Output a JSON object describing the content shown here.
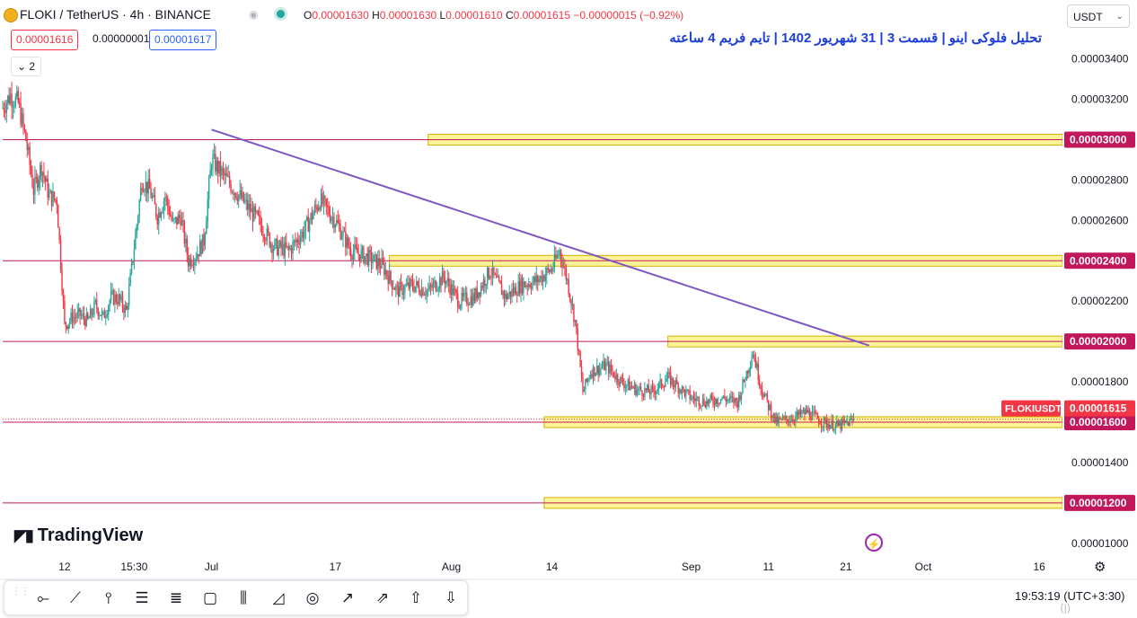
{
  "header": {
    "symbol_line": "FLOKI / TetherUS · 4h · BINANCE",
    "ohlc": {
      "open_label": "O",
      "open": "0.00001630",
      "high_label": "H",
      "high": "0.00001630",
      "low_label": "L",
      "low": "0.00001610",
      "close_label": "C",
      "close": "0.00001615",
      "change": "−0.00000015 (−0.92%)"
    },
    "sell_price": "0.00001616",
    "spread": "0.00000001",
    "buy_price": "0.00001617",
    "indicators_count": "2"
  },
  "currency_selector": "USDT",
  "chart_title": "تحلیل فلوکی اینو | قسمت 3 | 31 شهریور 1402 | تایم فریم 4 ساعته",
  "brand": "TradingView",
  "clock": "19:53:19 (UTC+3:30)",
  "chart_data": {
    "type": "candlestick",
    "title": "تحلیل فلوکی اینو | قسمت 3 | 31 شهریور 1402 | تایم فریم 4 ساعته",
    "ylim": [
      9.5e-06,
      3.55e-05
    ],
    "y_ticks": [
      "0.00003400",
      "0.00003200",
      "0.00003000",
      "0.00002800",
      "0.00002600",
      "0.00002400",
      "0.00002200",
      "0.00002000",
      "0.00001800",
      "0.00001600",
      "0.00001400",
      "0.00001200",
      "0.00001000"
    ],
    "y_tick_values": [
      3.4e-05,
      3.2e-05,
      3e-05,
      2.8e-05,
      2.6e-05,
      2.4e-05,
      2.2e-05,
      2e-05,
      1.8e-05,
      1.6e-05,
      1.4e-05,
      1.2e-05,
      1e-05
    ],
    "x_ticks": [
      "12",
      "15:30",
      "Jul",
      "17",
      "Aug",
      "14",
      "Sep",
      "11",
      "21",
      "Oct",
      "16"
    ],
    "x_tick_dates": [
      "2023-06-12",
      "2023-06-21",
      "2023-07-01",
      "2023-07-17",
      "2023-08-01",
      "2023-08-14",
      "2023-09-01",
      "2023-09-11",
      "2023-09-21",
      "2023-10-01",
      "2023-10-16"
    ],
    "date_range": [
      "2023-06-04",
      "2023-10-19"
    ],
    "last_price": 1.615e-05,
    "last_price_label": "0.00001615",
    "series_label": "FLOKIUSDT",
    "horizontal_levels": [
      {
        "value": 3e-05,
        "label": "0.00003000"
      },
      {
        "value": 2.4e-05,
        "label": "0.00002400"
      },
      {
        "value": 2e-05,
        "label": "0.00002000"
      },
      {
        "value": 1.6e-05,
        "label": "0.00001600"
      },
      {
        "value": 1.2e-05,
        "label": "0.00001200"
      }
    ],
    "zones": [
      {
        "from_date": "2023-07-29",
        "to_date": "2023-10-19",
        "value": 3e-05
      },
      {
        "from_date": "2023-07-24",
        "to_date": "2023-10-19",
        "value": 2.4e-05
      },
      {
        "from_date": "2023-08-29",
        "to_date": "2023-10-19",
        "value": 2e-05
      },
      {
        "from_date": "2023-08-13",
        "to_date": "2023-10-19",
        "value": 1.6e-05
      },
      {
        "from_date": "2023-08-13",
        "to_date": "2023-10-19",
        "value": 1.2e-05
      }
    ],
    "trendline": {
      "from": [
        "2023-07-01",
        3.05e-05
      ],
      "to": [
        "2023-09-24",
        1.98e-05
      ]
    },
    "price_path": [
      [
        "2023-06-04",
        3.16e-05
      ],
      [
        "2023-06-05",
        3.22e-05
      ],
      [
        "2023-06-06",
        3.18e-05
      ],
      [
        "2023-06-07",
        3e-05
      ],
      [
        "2023-06-08",
        2.75e-05
      ],
      [
        "2023-06-09",
        2.87e-05
      ],
      [
        "2023-06-10",
        2.72e-05
      ],
      [
        "2023-06-11",
        2.7e-05
      ],
      [
        "2023-06-12",
        2.08e-05
      ],
      [
        "2023-06-13",
        2.12e-05
      ],
      [
        "2023-06-14",
        2.13e-05
      ],
      [
        "2023-06-15",
        2.1e-05
      ],
      [
        "2023-06-16",
        2.18e-05
      ],
      [
        "2023-06-17",
        2.12e-05
      ],
      [
        "2023-06-18",
        2.22e-05
      ],
      [
        "2023-06-19",
        2.21e-05
      ],
      [
        "2023-06-20",
        2.15e-05
      ],
      [
        "2023-06-21",
        2.47e-05
      ],
      [
        "2023-06-22",
        2.8e-05
      ],
      [
        "2023-06-23",
        2.75e-05
      ],
      [
        "2023-06-24",
        2.62e-05
      ],
      [
        "2023-06-25",
        2.72e-05
      ],
      [
        "2023-06-26",
        2.58e-05
      ],
      [
        "2023-06-27",
        2.62e-05
      ],
      [
        "2023-06-28",
        2.4e-05
      ],
      [
        "2023-06-29",
        2.43e-05
      ],
      [
        "2023-06-30",
        2.5e-05
      ],
      [
        "2023-07-01",
        2.9e-05
      ],
      [
        "2023-07-03",
        2.8e-05
      ],
      [
        "2023-07-05",
        2.7e-05
      ],
      [
        "2023-07-07",
        2.6e-05
      ],
      [
        "2023-07-09",
        2.47e-05
      ],
      [
        "2023-07-11",
        2.45e-05
      ],
      [
        "2023-07-13",
        2.55e-05
      ],
      [
        "2023-07-15",
        2.7e-05
      ],
      [
        "2023-07-17",
        2.6e-05
      ],
      [
        "2023-07-19",
        2.45e-05
      ],
      [
        "2023-07-21",
        2.42e-05
      ],
      [
        "2023-07-23",
        2.38e-05
      ],
      [
        "2023-07-25",
        2.25e-05
      ],
      [
        "2023-07-27",
        2.28e-05
      ],
      [
        "2023-07-29",
        2.25e-05
      ],
      [
        "2023-07-31",
        2.32e-05
      ],
      [
        "2023-08-02",
        2.2e-05
      ],
      [
        "2023-08-04",
        2.22e-05
      ],
      [
        "2023-08-06",
        2.35e-05
      ],
      [
        "2023-08-08",
        2.22e-05
      ],
      [
        "2023-08-10",
        2.28e-05
      ],
      [
        "2023-08-12",
        2.3e-05
      ],
      [
        "2023-08-14",
        2.36e-05
      ],
      [
        "2023-08-15",
        2.45e-05
      ],
      [
        "2023-08-16",
        2.3e-05
      ],
      [
        "2023-08-17",
        2.1e-05
      ],
      [
        "2023-08-18",
        1.75e-05
      ],
      [
        "2023-08-19",
        1.85e-05
      ],
      [
        "2023-08-21",
        1.88e-05
      ],
      [
        "2023-08-23",
        1.8e-05
      ],
      [
        "2023-08-25",
        1.76e-05
      ],
      [
        "2023-08-27",
        1.75e-05
      ],
      [
        "2023-08-29",
        1.82e-05
      ],
      [
        "2023-09-01",
        1.72e-05
      ],
      [
        "2023-09-03",
        1.7e-05
      ],
      [
        "2023-09-05",
        1.72e-05
      ],
      [
        "2023-09-07",
        1.7e-05
      ],
      [
        "2023-09-09",
        1.95e-05
      ],
      [
        "2023-09-10",
        1.78e-05
      ],
      [
        "2023-09-11",
        1.68e-05
      ],
      [
        "2023-09-12",
        1.6e-05
      ],
      [
        "2023-09-14",
        1.62e-05
      ],
      [
        "2023-09-16",
        1.65e-05
      ],
      [
        "2023-09-18",
        1.6e-05
      ],
      [
        "2023-09-20",
        1.58e-05
      ],
      [
        "2023-09-22",
        1.61e-05
      ]
    ]
  },
  "icons": {
    "toolbar": [
      "crosshair-icon",
      "trendline-icon",
      "vertical-line-icon",
      "fib-retracement-icon",
      "parallel-channel-icon",
      "rectangle-icon",
      "long-position-icon",
      "triangle-pattern-icon",
      "circle-icon",
      "arrow-marker-icon",
      "arrow-icon",
      "arrow-up-icon",
      "arrow-down-icon"
    ]
  },
  "colors": {
    "up": "#26a69a",
    "down": "#f23645",
    "level_line": "#c2185b",
    "zone_fill": "#fff176",
    "zone_border": "#d4b000",
    "trendline": "#7e57c2",
    "title": "#1e3fd8"
  }
}
